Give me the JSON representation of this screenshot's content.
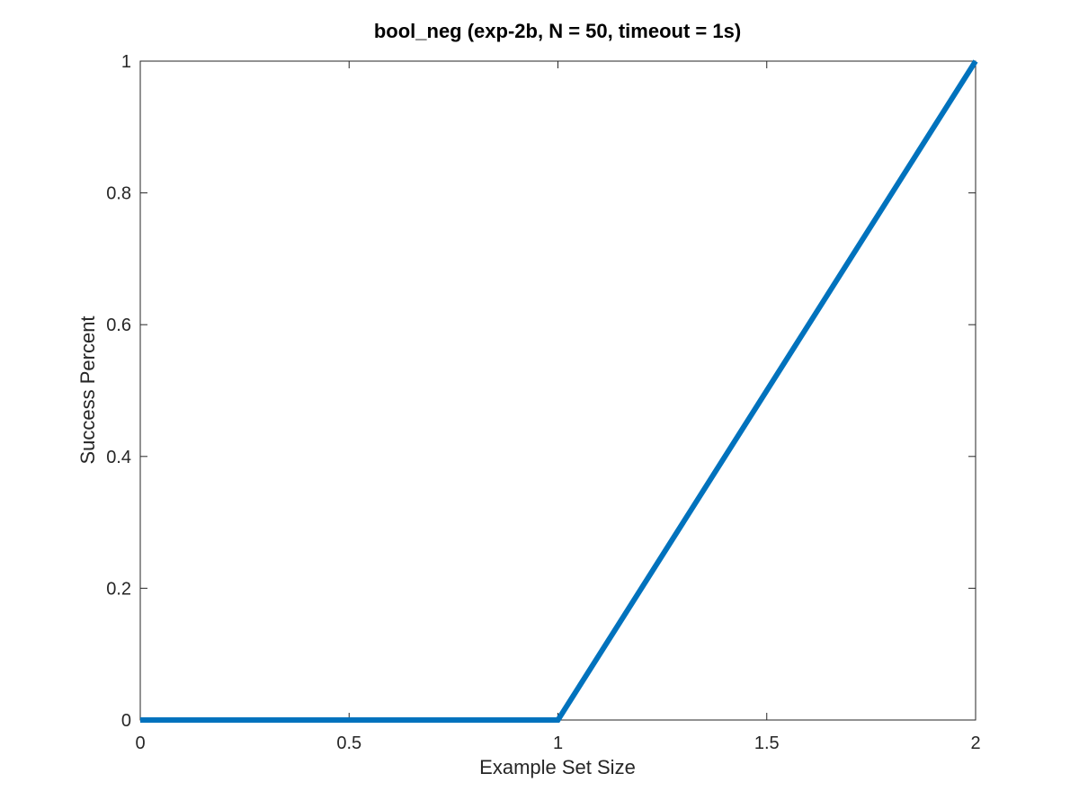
{
  "chart_data": {
    "type": "line",
    "title": "bool_neg (exp-2b, N = 50, timeout = 1s)",
    "xlabel": "Example Set Size",
    "ylabel": "Success Percent",
    "xlim": [
      0,
      2
    ],
    "ylim": [
      0,
      1
    ],
    "xticks": [
      0,
      0.5,
      1,
      1.5,
      2
    ],
    "xtick_labels": [
      "0",
      "0.5",
      "1",
      "1.5",
      "2"
    ],
    "yticks": [
      0,
      0.2,
      0.4,
      0.6,
      0.8,
      1
    ],
    "ytick_labels": [
      "0",
      "0.2",
      "0.4",
      "0.6",
      "0.8",
      "1"
    ],
    "grid": false,
    "legend": "none",
    "series": [
      {
        "color": "#0072BD",
        "x": [
          0,
          1,
          2
        ],
        "y": [
          0,
          0,
          1
        ]
      }
    ]
  }
}
